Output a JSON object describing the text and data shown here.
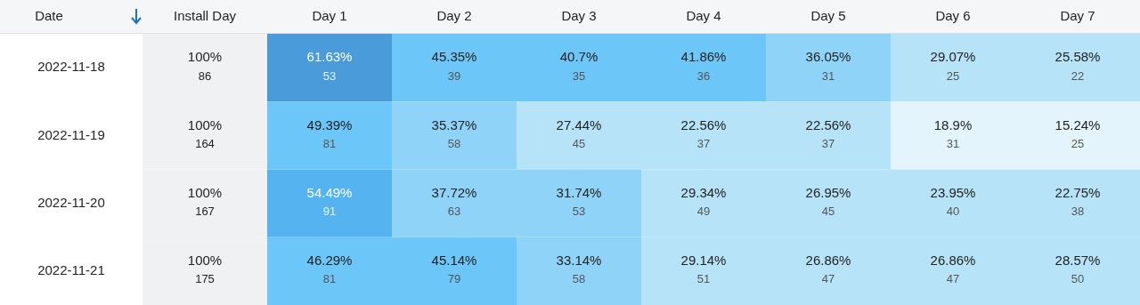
{
  "chart_data": {
    "type": "heatmap",
    "ylabel": "Date",
    "categories": [
      "Install Day",
      "Day 1",
      "Day 2",
      "Day 3",
      "Day 4",
      "Day 5",
      "Day 6",
      "Day 7"
    ],
    "y_categories": [
      "2022-11-18",
      "2022-11-19",
      "2022-11-20",
      "2022-11-21"
    ],
    "cells": [
      [
        100,
        61.63,
        45.35,
        40.7,
        41.86,
        36.05,
        29.07,
        25.58
      ],
      [
        100,
        49.39,
        35.37,
        27.44,
        22.56,
        22.56,
        18.9,
        15.24
      ],
      [
        100,
        54.49,
        37.72,
        31.74,
        29.34,
        26.95,
        23.95,
        22.75
      ],
      [
        100,
        46.29,
        45.14,
        33.14,
        29.14,
        26.86,
        26.86,
        28.57
      ]
    ],
    "cell_labels": [
      [
        "100%",
        "61.63%",
        "45.35%",
        "40.7%",
        "41.86%",
        "36.05%",
        "29.07%",
        "25.58%"
      ],
      [
        "100%",
        "49.39%",
        "35.37%",
        "27.44%",
        "22.56%",
        "22.56%",
        "18.9%",
        "15.24%"
      ],
      [
        "100%",
        "54.49%",
        "37.72%",
        "31.74%",
        "29.34%",
        "26.95%",
        "23.95%",
        "22.75%"
      ],
      [
        "100%",
        "46.29%",
        "45.14%",
        "33.14%",
        "29.14%",
        "26.86%",
        "26.86%",
        "28.57%"
      ]
    ],
    "annotations": [
      "86",
      "53",
      "39",
      "35",
      "36",
      "31",
      "25",
      "22",
      "164",
      "81",
      "58",
      "45",
      "37",
      "37",
      "31",
      "25",
      "167",
      "91",
      "63",
      "53",
      "49",
      "45",
      "40",
      "38",
      "175",
      "81",
      "79",
      "58",
      "51",
      "47",
      "47",
      "50"
    ]
  }
}
